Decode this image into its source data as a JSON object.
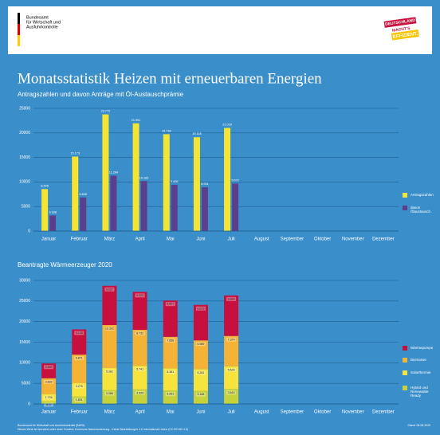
{
  "header": {
    "org": [
      "Bundesamt",
      "für Wirtschaft und",
      "Ausfuhrkontrolle"
    ],
    "logo": [
      "DEUTSCHLAND",
      "MACHT'S",
      "EFFIZIENT."
    ]
  },
  "title": "Monatsstatistik Heizen mit erneuerbaren Energien",
  "subtitle": "Antragszahlen und davon Anträge mit Öl-Austauschprämie",
  "chart_data": [
    {
      "type": "bar",
      "categories": [
        "Januar",
        "Februar",
        "März",
        "April",
        "Mai",
        "Juni",
        "Juli",
        "August",
        "September",
        "Oktober",
        "November",
        "Dezember"
      ],
      "series": [
        {
          "name": "Antragszahlen",
          "color": "#f4e535",
          "values": [
            8545,
            15173,
            23772,
            21951,
            19738,
            19118,
            21018,
            null,
            null,
            null,
            null,
            null
          ],
          "value_labels": [
            "8.545",
            "15.173",
            "23.772",
            "21.951",
            "19.738",
            "19.118",
            "21.018",
            null,
            null,
            null,
            null,
            null
          ]
        },
        {
          "name": "davon Ölaustausch",
          "color": "#5b3f8c",
          "values": [
            3188,
            6848,
            11284,
            10183,
            9406,
            8911,
            9672,
            null,
            null,
            null,
            null,
            null
          ],
          "value_labels": [
            "3.188",
            "6.848",
            "11.284",
            "10.183",
            "9.406",
            "8.911",
            "9.672",
            null,
            null,
            null,
            null,
            null
          ]
        }
      ],
      "ylim": [
        0,
        25000
      ],
      "yticks": [
        0,
        5000,
        10000,
        15000,
        20000,
        25000
      ],
      "grid": true
    },
    {
      "type": "stacked_bar",
      "title": "Beantragte Wärmeerzeuger 2020",
      "categories": [
        "Januar",
        "Februar",
        "März",
        "April",
        "Mai",
        "Juni",
        "Juli",
        "August",
        "September",
        "Oktober",
        "November",
        "Dezember"
      ],
      "series": [
        {
          "name": "Hybrid und Renewable Ready",
          "color": "#c7d23a",
          "values": [
            672,
            1831,
            3386,
            3529,
            3261,
            3168,
            3610,
            null,
            null,
            null,
            null,
            null
          ],
          "value_labels": [
            "672",
            "1.831",
            "3.386",
            "3.529",
            "3.261",
            "3.168",
            "3.610",
            null,
            null,
            null,
            null,
            null
          ]
        },
        {
          "name": "Solarthermie",
          "color": "#f6e33c",
          "values": [
            1726,
            3275,
            5382,
            5741,
            5381,
            5281,
            5524,
            null,
            null,
            null,
            null,
            null
          ],
          "value_labels": [
            "1.726",
            "3.275",
            "5.382",
            "5.741",
            "5.381",
            "5.281",
            "5.524",
            null,
            null,
            null,
            null,
            null
          ]
        },
        {
          "name": "Biomasse",
          "color": "#f5b335",
          "values": [
            3832,
            6871,
            10392,
            8732,
            7656,
            6989,
            7374,
            null,
            null,
            null,
            null,
            null
          ],
          "value_labels": [
            "3.832",
            "6.871",
            "10.392",
            "8.732",
            "7.656",
            "6.989",
            "7.374",
            null,
            null,
            null,
            null,
            null
          ]
        },
        {
          "name": "Wärmepumpe",
          "color": "#c8103e",
          "values": [
            3589,
            6128,
            9537,
            9223,
            8827,
            8615,
            9844,
            null,
            null,
            null,
            null,
            null
          ],
          "value_labels": [
            "3.589",
            "6.128",
            "9.537",
            "9.223",
            "8.827",
            "8.615",
            "9.844",
            null,
            null,
            null,
            null,
            null
          ]
        }
      ],
      "ylim": [
        0,
        30000
      ],
      "yticks": [
        0,
        5000,
        10000,
        15000,
        20000,
        25000,
        30000
      ],
      "grid": true
    }
  ],
  "footer": {
    "lines": [
      "Bundesamt für Wirtschaft und Ausfuhrkontrolle (BAFA)",
      "Dieses Werk ist lizenziert unter einer Creative Commons Namensnennung - Keine Bearbeitungen 4.0 International Lizenz (CC BY-ND 4.0)"
    ],
    "date": "Stand: 06.08.2020"
  }
}
